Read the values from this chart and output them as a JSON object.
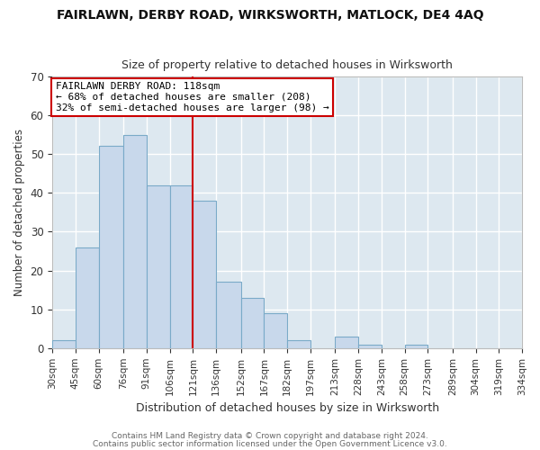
{
  "title": "FAIRLAWN, DERBY ROAD, WIRKSWORTH, MATLOCK, DE4 4AQ",
  "subtitle": "Size of property relative to detached houses in Wirksworth",
  "xlabel": "Distribution of detached houses by size in Wirksworth",
  "ylabel": "Number of detached properties",
  "bar_color": "#c8d8eb",
  "bar_edge_color": "#7aaac8",
  "background_color": "#dde8f0",
  "grid_color": "#ffffff",
  "vline_color": "#cc0000",
  "vline_x": 121,
  "bin_edges": [
    30,
    45,
    60,
    76,
    91,
    106,
    121,
    136,
    152,
    167,
    182,
    197,
    213,
    228,
    243,
    258,
    273,
    289,
    304,
    319,
    334
  ],
  "bin_labels": [
    "30sqm",
    "45sqm",
    "60sqm",
    "76sqm",
    "91sqm",
    "106sqm",
    "121sqm",
    "136sqm",
    "152sqm",
    "167sqm",
    "182sqm",
    "197sqm",
    "213sqm",
    "228sqm",
    "243sqm",
    "258sqm",
    "273sqm",
    "289sqm",
    "304sqm",
    "319sqm",
    "334sqm"
  ],
  "bar_heights": [
    2,
    26,
    52,
    55,
    42,
    42,
    38,
    17,
    13,
    9,
    2,
    0,
    3,
    1,
    0,
    1,
    0,
    0,
    0,
    0
  ],
  "ylim": [
    0,
    70
  ],
  "yticks": [
    0,
    10,
    20,
    30,
    40,
    50,
    60,
    70
  ],
  "annotation_title": "FAIRLAWN DERBY ROAD: 118sqm",
  "annotation_line1": "← 68% of detached houses are smaller (208)",
  "annotation_line2": "32% of semi-detached houses are larger (98) →",
  "annotation_box_color": "#cc0000",
  "footer_line1": "Contains HM Land Registry data © Crown copyright and database right 2024.",
  "footer_line2": "Contains public sector information licensed under the Open Government Licence v3.0."
}
